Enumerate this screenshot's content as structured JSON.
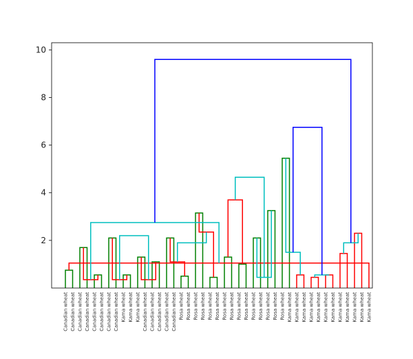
{
  "chart_data": {
    "type": "dendrogram",
    "title": "",
    "xlabel": "",
    "ylabel": "",
    "ylim": [
      0,
      10.3
    ],
    "y_ticks": [
      2,
      4,
      6,
      8,
      10
    ],
    "y_tick_labels": [
      "2",
      "4",
      "6",
      "8",
      "10"
    ],
    "grid": false,
    "clusters": [
      {
        "color": "#008000",
        "color_name": "green",
        "leaf_range": [
          0,
          15
        ]
      },
      {
        "color": "#ff0000",
        "color_name": "red",
        "leaf_range": [
          16,
          30
        ]
      },
      {
        "color": "#00bfbf",
        "color_name": "cyan",
        "leaf_range": [
          31,
          42
        ]
      }
    ],
    "above_threshold_color": "#0000ff",
    "leaves": [
      "Canadian wheat",
      "Canadian wheat",
      "Canadian wheat",
      "Canadian wheat",
      "Canadian wheat",
      "Canadian wheat",
      "Canadian wheat",
      "Canadian wheat",
      "Kama wheat",
      "Kama wheat",
      "Kama wheat",
      "Canadian wheat",
      "Canadian wheat",
      "Canadian wheat",
      "Canadian wheat",
      "Canadian wheat",
      "Rosa wheat",
      "Rosa wheat",
      "Rosa wheat",
      "Rosa wheat",
      "Rosa wheat",
      "Rosa wheat",
      "Rosa wheat",
      "Rosa wheat",
      "Rosa wheat",
      "Rosa wheat",
      "Rosa wheat",
      "Rosa wheat",
      "Rosa wheat",
      "Rosa wheat",
      "Rosa wheat",
      "Kama wheat",
      "Kama wheat",
      "Kama wheat",
      "Kama wheat",
      "Kama wheat",
      "Kama wheat",
      "Kama wheat",
      "Kama wheat",
      "Kama wheat",
      "Kama wheat",
      "Kama wheat",
      "Kama wheat"
    ],
    "links": [
      {
        "a": 0,
        "b": 1,
        "height": 0.75,
        "color": "#008000"
      },
      {
        "a": 2,
        "b": 3,
        "height": 1.7,
        "color": "#008000"
      },
      {
        "a": 4,
        "b": 5,
        "height": 0.55,
        "color": "#008000"
      },
      {
        "a": 6,
        "b": 7,
        "height": 2.1,
        "color": "#008000"
      },
      {
        "a": 8,
        "b": 9,
        "height": 0.55,
        "color": "#008000"
      },
      {
        "a": 10,
        "b": 11,
        "height": 1.3,
        "color": "#008000"
      },
      {
        "a": 12,
        "b": 13,
        "height": 1.1,
        "color": "#008000"
      },
      {
        "a": 14,
        "b": 15,
        "height": 2.1,
        "color": "#008000"
      },
      {
        "a": 16,
        "b": 17,
        "height": 0.5,
        "color": "#008000"
      },
      {
        "a": 18,
        "b": 19,
        "height": 3.15,
        "color": "#008000"
      },
      {
        "a": 20,
        "b": 21,
        "height": 0.45,
        "color": "#008000"
      },
      {
        "a": 22,
        "b": 23,
        "height": 1.3,
        "color": "#008000"
      },
      {
        "a": 24,
        "b": 25,
        "height": 1.0,
        "color": "#008000"
      },
      {
        "a": 26,
        "b": 27,
        "height": 2.1,
        "color": "#008000"
      },
      {
        "a": 28,
        "b": 29,
        "height": 3.25,
        "color": "#008000"
      },
      {
        "a": 30,
        "b": 31,
        "height": 5.45,
        "color": "#008000"
      },
      {
        "a": 32,
        "b": 33,
        "height": 0.55,
        "color": "#ff0000"
      },
      {
        "a": 34,
        "b": 35,
        "height": 0.45,
        "color": "#ff0000"
      },
      {
        "a": 36,
        "b": 37,
        "height": 0.55,
        "color": "#ff0000"
      },
      {
        "a": 38,
        "b": 39,
        "height": 1.45,
        "color": "#ff0000"
      },
      {
        "a": 40,
        "b": 41,
        "height": 2.3,
        "color": "#ff0000"
      },
      {
        "a": 42,
        "b": 43,
        "height": 1.05,
        "color": "#ff0000"
      },
      {
        "a": 44,
        "b": 45,
        "height": 0.35,
        "color": "#ff0000"
      },
      {
        "a": 46,
        "b": 47,
        "height": 0.35,
        "color": "#ff0000"
      },
      {
        "a": 48,
        "b": 49,
        "height": 0.35,
        "color": "#ff0000"
      },
      {
        "a": 50,
        "b": 51,
        "height": 1.1,
        "color": "#ff0000"
      },
      {
        "a": 52,
        "b": 53,
        "height": 2.35,
        "color": "#ff0000"
      },
      {
        "a": 54,
        "b": 55,
        "height": 3.7,
        "color": "#ff0000"
      },
      {
        "a": 56,
        "b": 57,
        "height": 0.45,
        "color": "#00bfbf"
      },
      {
        "a": 58,
        "b": 59,
        "height": 1.5,
        "color": "#00bfbf"
      },
      {
        "a": 60,
        "b": 61,
        "height": 0.55,
        "color": "#00bfbf"
      },
      {
        "a": 62,
        "b": 63,
        "height": 1.9,
        "color": "#00bfbf"
      },
      {
        "a": 64,
        "b": 65,
        "height": 2.75,
        "color": "#00bfbf"
      },
      {
        "a": 66,
        "b": 67,
        "height": 2.2,
        "color": "#00bfbf"
      },
      {
        "a": 68,
        "b": 69,
        "height": 1.9,
        "color": "#00bfbf"
      },
      {
        "a": 70,
        "b": 71,
        "height": 4.65,
        "color": "#00bfbf"
      },
      {
        "a": 72,
        "b": 73,
        "height": 6.75,
        "color": "#0000ff"
      },
      {
        "a": 74,
        "b": 75,
        "height": 9.6,
        "color": "#0000ff"
      }
    ]
  }
}
